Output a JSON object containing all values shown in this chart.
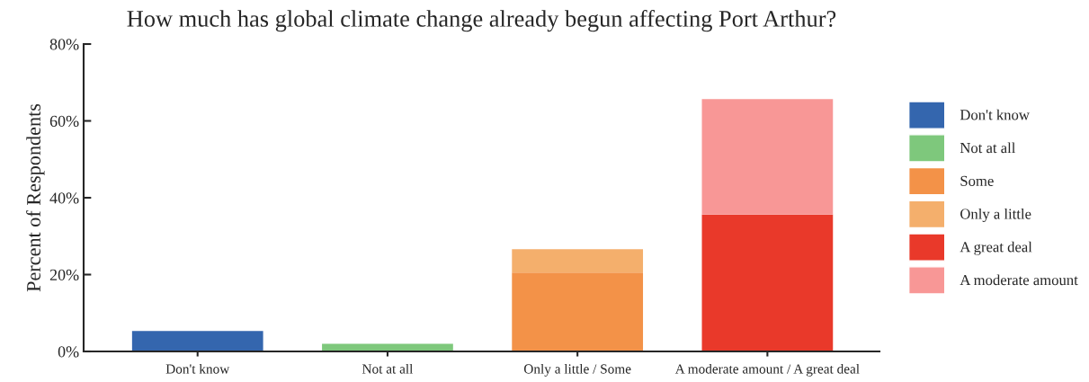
{
  "chart_data": {
    "type": "bar",
    "title": "How much has global climate change already begun affecting Port Arthur?",
    "ylabel": "Percent of Respondents",
    "categories": [
      "Don't know",
      "Not at all",
      "Only a little / Some",
      "A moderate amount / A great deal"
    ],
    "stacked": true,
    "series": [
      {
        "name": "Don't know",
        "color": "#3466ae",
        "values": [
          5.3,
          null,
          null,
          null
        ]
      },
      {
        "name": "Not at all",
        "color": "#7ec87c",
        "values": [
          null,
          2.0,
          null,
          null
        ]
      },
      {
        "name": "Some",
        "color": "#f39248",
        "values": [
          null,
          null,
          20.5,
          null
        ]
      },
      {
        "name": "Only a little",
        "color": "#f4af6c",
        "values": [
          null,
          null,
          6.1,
          null
        ]
      },
      {
        "name": "A great deal",
        "color": "#e9392a",
        "values": [
          null,
          null,
          null,
          35.6
        ]
      },
      {
        "name": "A moderate amount",
        "color": "#f89796",
        "values": [
          null,
          null,
          null,
          30.1
        ]
      }
    ],
    "ylim": [
      0,
      80
    ],
    "yticks": [
      {
        "value": 0,
        "label": "0%"
      },
      {
        "value": 20,
        "label": "20%"
      },
      {
        "value": 40,
        "label": "40%"
      },
      {
        "value": 60,
        "label": "60%"
      },
      {
        "value": 80,
        "label": "80%"
      }
    ],
    "grid": false,
    "legend": "right"
  }
}
